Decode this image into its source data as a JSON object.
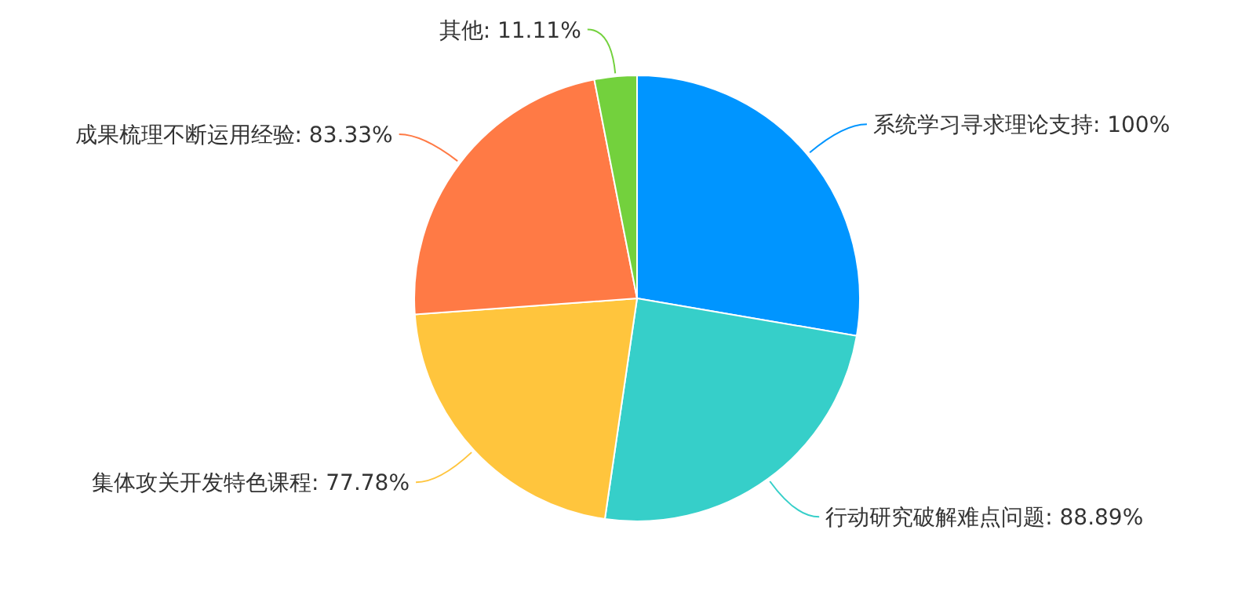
{
  "chart_data": {
    "type": "pie",
    "categories": [
      "系统学习寻求理论支持",
      "行动研究破解难点问题",
      "集体攻关开发特色课程",
      "成果梳理不断运用经验",
      "其他"
    ],
    "values": [
      100,
      88.89,
      77.78,
      83.33,
      11.11
    ],
    "value_labels": [
      "100%",
      "88.89%",
      "77.78%",
      "83.33%",
      "11.11%"
    ],
    "colors": [
      "#0095ff",
      "#36cfc9",
      "#ffc53d",
      "#ff7a45",
      "#73d13d"
    ]
  }
}
